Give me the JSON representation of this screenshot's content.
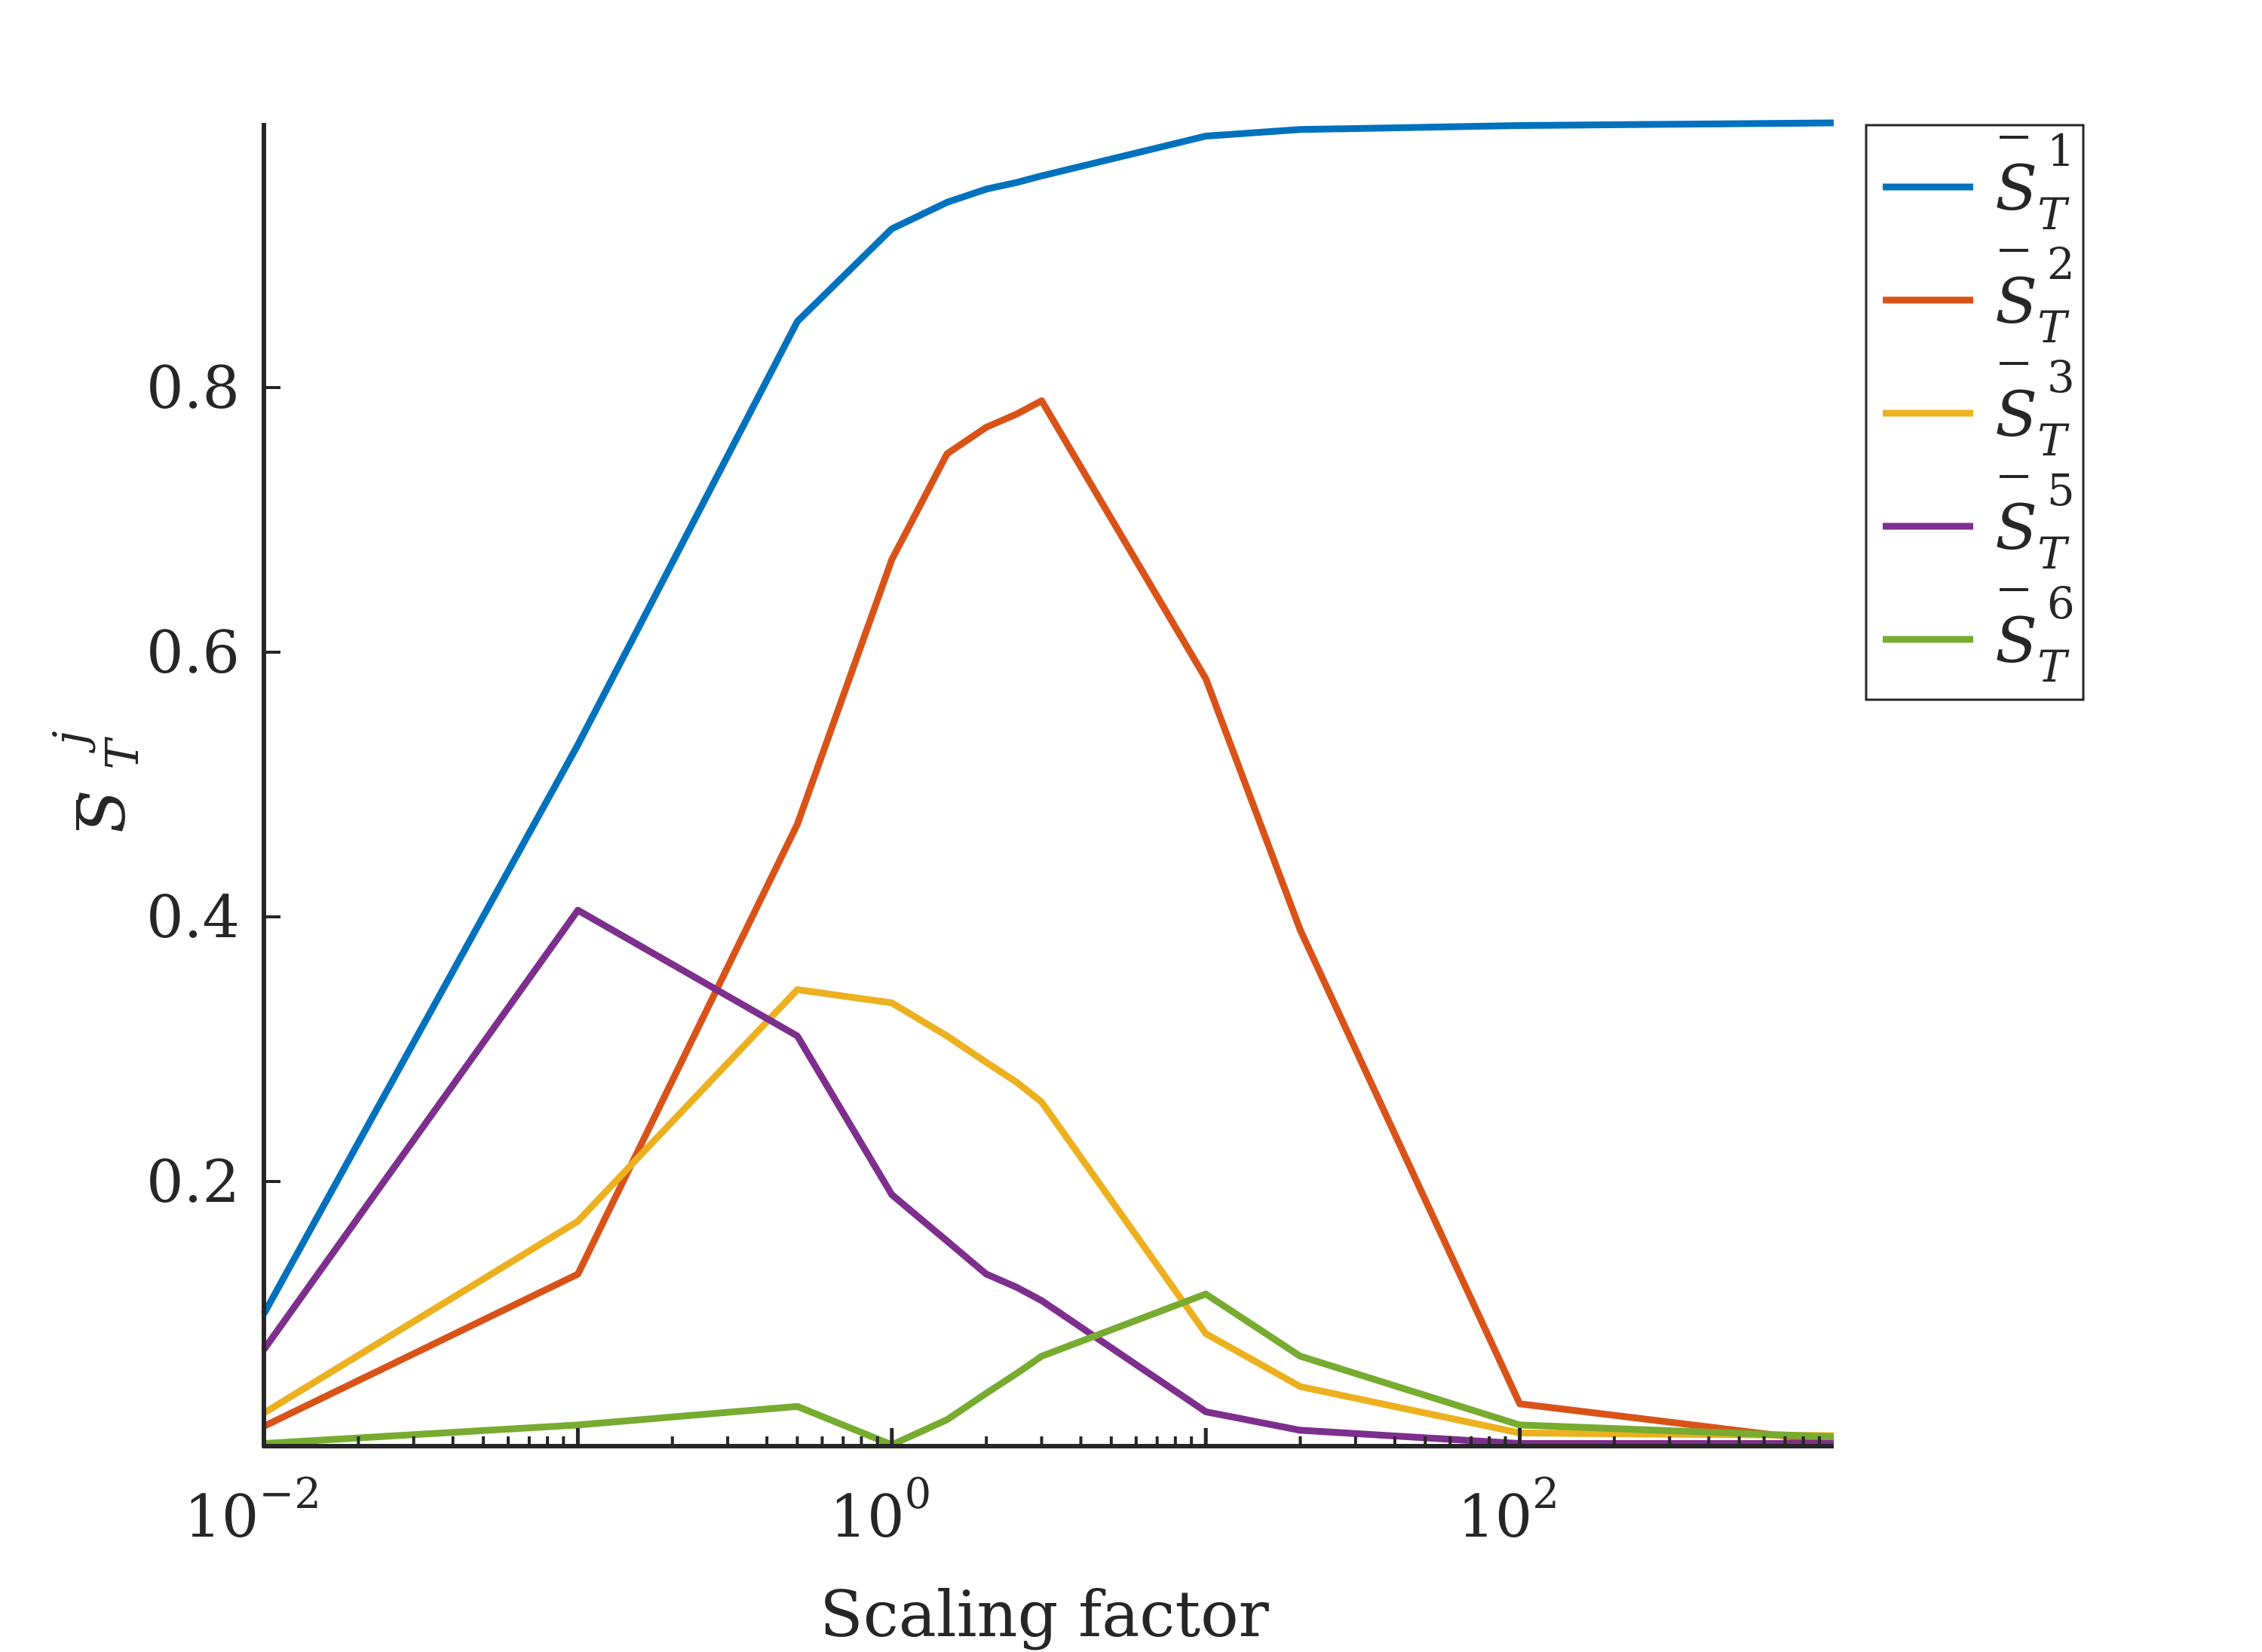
{
  "chart_data": {
    "type": "line",
    "title": "",
    "xlabel": "Scaling factor",
    "ylabel": {
      "base": "S",
      "sub": "T",
      "sup": "j"
    },
    "xscale": "log",
    "xlim": [
      0.01,
      1000
    ],
    "ylim": [
      0,
      1
    ],
    "xticks": [
      {
        "value": 0.01,
        "base": "10",
        "exp": "−2"
      },
      {
        "value": 1,
        "base": "10",
        "exp": "0"
      },
      {
        "value": 100,
        "base": "10",
        "exp": "2"
      }
    ],
    "yticks": [
      {
        "value": 0.2,
        "label": "0.2"
      },
      {
        "value": 0.4,
        "label": "0.4"
      },
      {
        "value": 0.6,
        "label": "0.6"
      },
      {
        "value": 0.8,
        "label": "0.8"
      }
    ],
    "grid": false,
    "legend_position": "top-right-outside",
    "x": [
      0.01,
      0.1,
      0.5,
      1,
      1.5,
      2,
      2.5,
      3,
      10,
      20,
      100,
      1000
    ],
    "series": [
      {
        "name": "S_T^1",
        "legend": {
          "base": "S",
          "sub": "T",
          "sup": "1"
        },
        "color": "#0072BD",
        "values": [
          0.1,
          0.53,
          0.85,
          0.92,
          0.94,
          0.95,
          0.955,
          0.96,
          0.99,
          0.995,
          0.998,
          1.0
        ]
      },
      {
        "name": "S_T^2",
        "legend": {
          "base": "S",
          "sub": "T",
          "sup": "2"
        },
        "color": "#D95319",
        "values": [
          0.015,
          0.13,
          0.47,
          0.67,
          0.75,
          0.77,
          0.78,
          0.79,
          0.58,
          0.39,
          0.032,
          0.003
        ]
      },
      {
        "name": "S_T^3",
        "legend": {
          "base": "S",
          "sub": "T",
          "sup": "3"
        },
        "color": "#EDB120",
        "values": [
          0.025,
          0.17,
          0.345,
          0.335,
          0.31,
          0.29,
          0.275,
          0.26,
          0.085,
          0.045,
          0.01,
          0.008
        ]
      },
      {
        "name": "S_T^5",
        "legend": {
          "base": "S",
          "sub": "T",
          "sup": "5"
        },
        "color": "#7E2F8E",
        "values": [
          0.073,
          0.405,
          0.31,
          0.19,
          0.155,
          0.13,
          0.12,
          0.11,
          0.026,
          0.012,
          0.002,
          0.002
        ]
      },
      {
        "name": "S_T^6",
        "legend": {
          "base": "S",
          "sub": "T",
          "sup": "6"
        },
        "color": "#77AC30",
        "values": [
          0.002,
          0.016,
          0.03,
          0.001,
          0.02,
          0.04,
          0.055,
          0.068,
          0.115,
          0.068,
          0.016,
          0.007
        ]
      }
    ]
  }
}
